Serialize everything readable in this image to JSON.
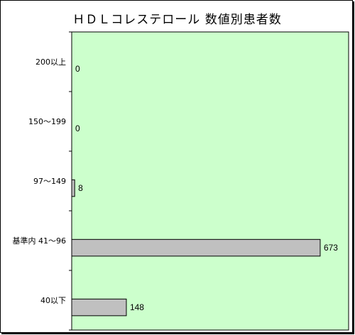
{
  "chart_data": {
    "type": "bar",
    "orientation": "horizontal",
    "title": "ＨＤＬコレステロール 数値別患者数",
    "categories": [
      "200以上",
      "150～199",
      "97～149",
      "基準内 41～96",
      "40以下"
    ],
    "values": [
      0,
      0,
      8,
      673,
      148
    ],
    "xlabel": "",
    "ylabel": "",
    "xlim": [
      0,
      750
    ],
    "grid": false,
    "legend": "none",
    "plot_background": "#ccffcc",
    "bar_color": "#c0c0c0",
    "bar_border_color": "#000000"
  }
}
